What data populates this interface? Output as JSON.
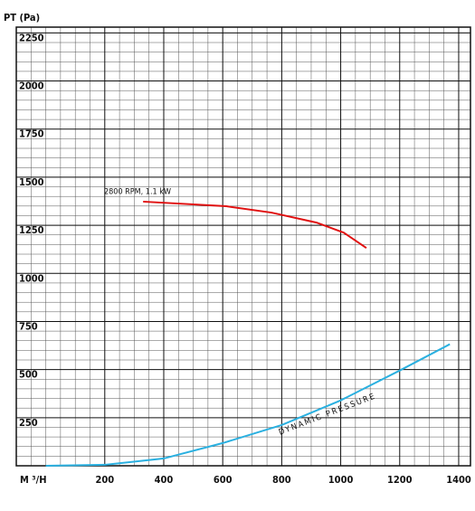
{
  "chart_data": {
    "type": "line",
    "y_label": "PT (Pa)",
    "x_label": "M ³/H",
    "xlim": [
      -100,
      1440
    ],
    "ylim": [
      0,
      2280
    ],
    "xticks": [
      200,
      400,
      600,
      800,
      1000,
      1200,
      1400
    ],
    "yticks": [
      250,
      500,
      750,
      1000,
      1250,
      1500,
      1750,
      2000,
      2250
    ],
    "grid": true,
    "series": [
      {
        "name": "2800 RPM, 1.1 kW",
        "color": "#e01010",
        "x": [
          330,
          612,
          765,
          918,
          1010,
          1087
        ],
        "values": [
          1373,
          1349,
          1316,
          1264,
          1212,
          1132
        ]
      },
      {
        "name": "DYNAMIC PRESSURE",
        "color": "#2ab0e0",
        "x": [
          0,
          200,
          400,
          600,
          800,
          1000,
          1200,
          1370
        ],
        "values": [
          0,
          5,
          38,
          118,
          212,
          340,
          495,
          632
        ]
      }
    ]
  }
}
